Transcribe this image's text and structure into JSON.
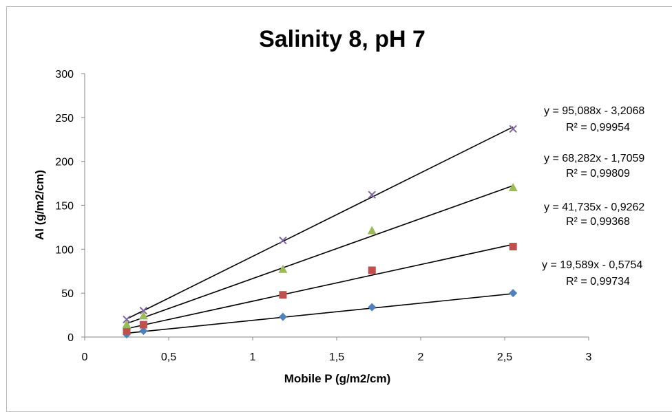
{
  "chart_data": {
    "type": "scatter",
    "title": "Salinity 8, pH 7",
    "xlabel": "Mobile P (g/m2/cm)",
    "ylabel": "Al (g/m2/cm)",
    "xlim": [
      0,
      3
    ],
    "ylim": [
      0,
      300
    ],
    "x_ticks": [
      0,
      0.5,
      1,
      1.5,
      2,
      2.5,
      3
    ],
    "x_tick_labels": [
      "0",
      "0,5",
      "1",
      "1,5",
      "2",
      "2,5",
      "3"
    ],
    "y_ticks": [
      0,
      50,
      100,
      150,
      200,
      250,
      300
    ],
    "y_tick_labels": [
      "0",
      "50",
      "100",
      "150",
      "200",
      "250",
      "300"
    ],
    "grid": false,
    "legend": "none",
    "series": [
      {
        "marker": "diamond",
        "color": "#4f81bd",
        "x": [
          0.25,
          0.35,
          1.18,
          1.71,
          2.55
        ],
        "y": [
          3,
          7,
          23,
          34,
          50
        ],
        "trendline": {
          "slope": 19.589,
          "intercept": -0.5754
        },
        "equation": "y = 19,589x - 0,5754",
        "r2": "R² = 0,99734"
      },
      {
        "marker": "square",
        "color": "#c0504d",
        "x": [
          0.25,
          0.35,
          1.18,
          1.71,
          2.55
        ],
        "y": [
          7,
          14,
          48,
          76,
          103
        ],
        "trendline": {
          "slope": 41.735,
          "intercept": -0.9262
        },
        "equation": "y = 41,735x - 0,9262",
        "r2": "R² = 0,99368"
      },
      {
        "marker": "triangle",
        "color": "#9bbb59",
        "x": [
          0.25,
          0.35,
          1.18,
          1.71,
          2.55
        ],
        "y": [
          14,
          24,
          77,
          121,
          170
        ],
        "trendline": {
          "slope": 68.282,
          "intercept": -1.7059
        },
        "equation": "y = 68,282x - 1,7059",
        "r2": "R² = 0,99809"
      },
      {
        "marker": "x",
        "color": "#8064a2",
        "x": [
          0.25,
          0.35,
          1.18,
          1.71,
          2.55
        ],
        "y": [
          20,
          30,
          110,
          162,
          237
        ],
        "trendline": {
          "slope": 95.088,
          "intercept": -3.2068
        },
        "equation": "y = 95,088x - 3,2068",
        "r2": "R² = 0,99954"
      }
    ]
  }
}
